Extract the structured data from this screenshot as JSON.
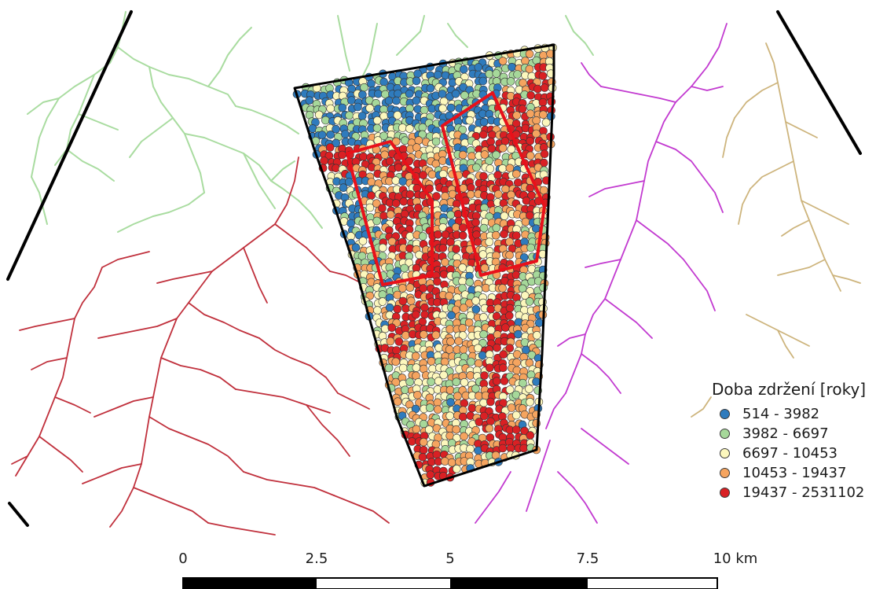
{
  "legend": {
    "title": "Doba zdržení [roky]",
    "items": [
      {
        "label": "514 - 3982",
        "color": "#2f7bbd"
      },
      {
        "label": "3982 - 6697",
        "color": "#a6d89a"
      },
      {
        "label": "6697 - 10453",
        "color": "#fcf7bd"
      },
      {
        "label": "10453 - 19437",
        "color": "#f5a45f"
      },
      {
        "label": "19437 - 2531102",
        "color": "#d92024"
      }
    ]
  },
  "scalebar": {
    "labels": [
      "0",
      "2.5",
      "5",
      "7.5",
      "10 km"
    ]
  },
  "layers": {
    "boundary_color": "#000000",
    "zone_color": "#e8111a",
    "streams": [
      {
        "name": "green-streams",
        "color": "#a9dca0"
      },
      {
        "name": "red-streams",
        "color": "#c0303c"
      },
      {
        "name": "magenta-streams",
        "color": "#c23ad0"
      },
      {
        "name": "tan-streams",
        "color": "#cdb47c"
      }
    ]
  }
}
